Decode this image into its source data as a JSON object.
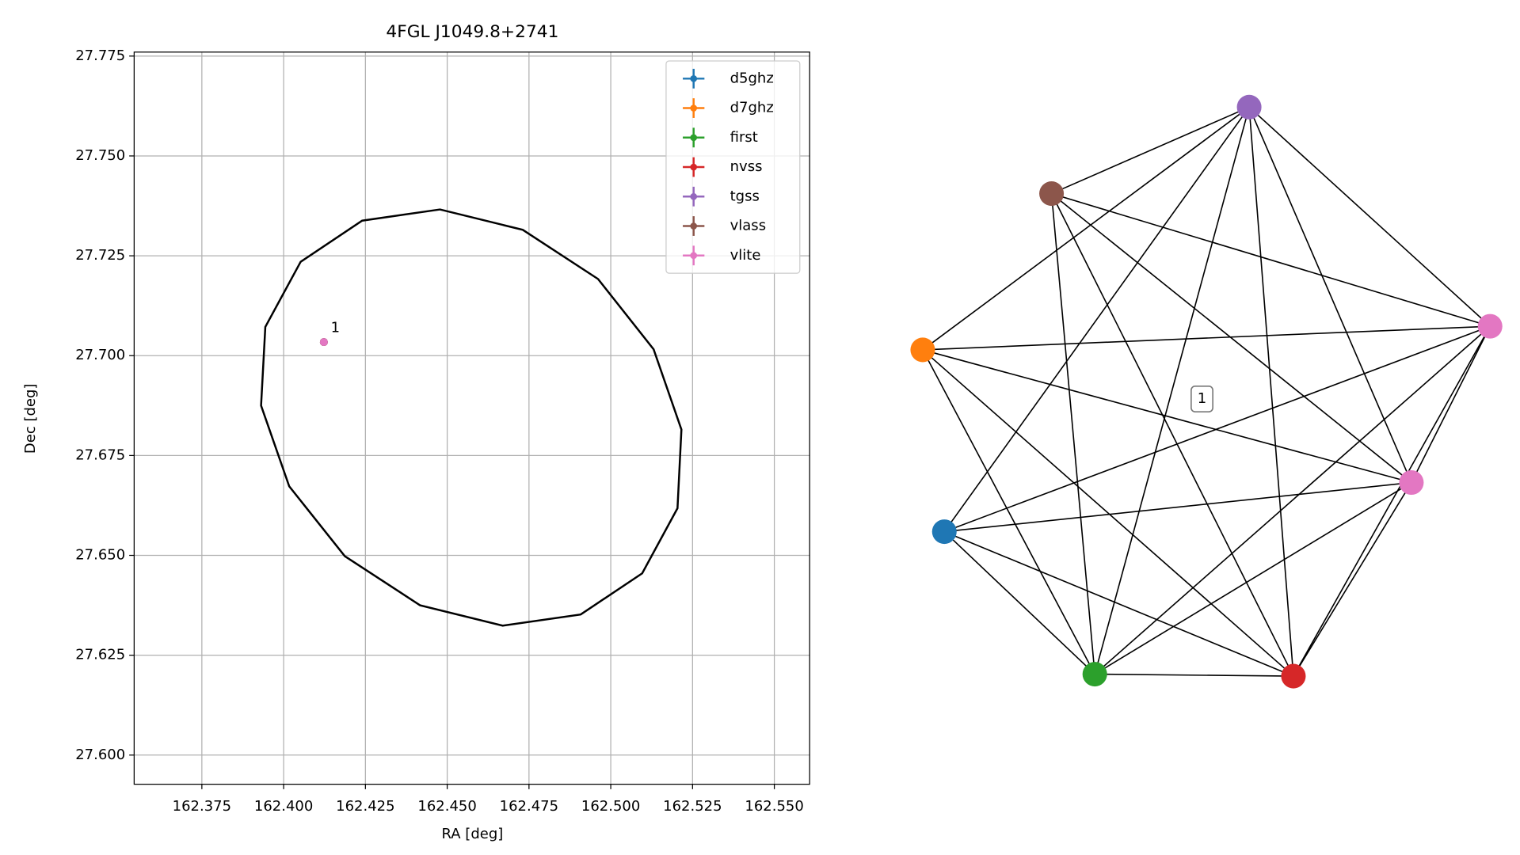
{
  "chart_data": [
    {
      "type": "scatter",
      "title": "4FGL J1049.8+2741",
      "x_label": "RA [deg]",
      "y_label": "Dec [deg]",
      "xlim": [
        162.3543,
        162.5608
      ],
      "ylim": [
        27.5927,
        27.776
      ],
      "xticks": [
        162.375,
        {
          "value": 162.4,
          "label": "162.400"
        },
        162.425,
        {
          "value": 162.45,
          "label": "162.450"
        },
        162.475,
        {
          "value": 162.5,
          "label": "162.500"
        },
        162.525,
        {
          "value": 162.55,
          "label": "162.550"
        }
      ],
      "yticks": [
        {
          "value": 27.6,
          "label": "27.600"
        },
        27.625,
        {
          "value": 27.65,
          "label": "27.650"
        },
        27.675,
        {
          "value": 27.7,
          "label": "27.700"
        },
        27.725,
        {
          "value": 27.75,
          "label": "27.750"
        },
        27.775
      ],
      "grid": true,
      "legend": "upper right",
      "series": [
        {
          "name": "d5ghz",
          "color": "#1f77b4",
          "x": [
            162.4123
          ],
          "y": [
            27.7034
          ]
        },
        {
          "name": "d7ghz",
          "color": "#ff7f0e",
          "x": [
            162.4123
          ],
          "y": [
            27.7034
          ]
        },
        {
          "name": "first",
          "color": "#2ca02c",
          "x": [
            162.4123
          ],
          "y": [
            27.7034
          ]
        },
        {
          "name": "nvss",
          "color": "#d62728",
          "x": [
            162.4123
          ],
          "y": [
            27.7034
          ]
        },
        {
          "name": "tgss",
          "color": "#9467bd",
          "x": [
            162.4123
          ],
          "y": [
            27.7034
          ]
        },
        {
          "name": "vlass",
          "color": "#8c564b",
          "x": [
            162.4123
          ],
          "y": [
            27.7034
          ]
        },
        {
          "name": "vlite",
          "color": "#e377c2",
          "x": [
            162.4123
          ],
          "y": [
            27.7034
          ]
        }
      ],
      "annotation": "1",
      "ellipse": {
        "color": "#000000",
        "x": [
          162.5096,
          162.4908,
          162.467,
          162.4417,
          162.4187,
          162.4017,
          162.3931,
          162.3944,
          162.4052,
          162.424,
          162.4478,
          162.4731,
          162.4961,
          162.5131,
          162.5216,
          162.5204
        ],
        "y": [
          27.6455,
          27.6352,
          27.6324,
          27.6375,
          27.6498,
          27.6673,
          27.6875,
          27.7072,
          27.7235,
          27.7338,
          27.7366,
          27.7315,
          27.7192,
          27.7016,
          27.6815,
          27.6618
        ]
      }
    },
    {
      "type": "network",
      "nodes": [
        {
          "color": "#1f77b4"
        },
        {
          "color": "#ff7f0e"
        },
        {
          "color": "#2ca02c"
        },
        {
          "color": "#d62728"
        },
        {
          "color": "#9467bd"
        },
        {
          "color": "#8c564b"
        },
        {
          "color": "#e377c2"
        },
        {
          "color": "#e377c2"
        }
      ],
      "edges": [
        [
          0,
          2
        ],
        [
          0,
          3
        ],
        [
          0,
          4
        ],
        [
          0,
          6
        ],
        [
          0,
          7
        ],
        [
          1,
          2
        ],
        [
          1,
          3
        ],
        [
          1,
          4
        ],
        [
          1,
          6
        ],
        [
          1,
          7
        ],
        [
          2,
          3
        ],
        [
          2,
          4
        ],
        [
          2,
          5
        ],
        [
          2,
          6
        ],
        [
          2,
          7
        ],
        [
          3,
          4
        ],
        [
          3,
          5
        ],
        [
          3,
          6
        ],
        [
          3,
          7
        ],
        [
          4,
          5
        ],
        [
          4,
          6
        ],
        [
          4,
          7
        ],
        [
          5,
          6
        ],
        [
          5,
          7
        ],
        [
          6,
          7
        ]
      ],
      "annotation": "1"
    }
  ]
}
